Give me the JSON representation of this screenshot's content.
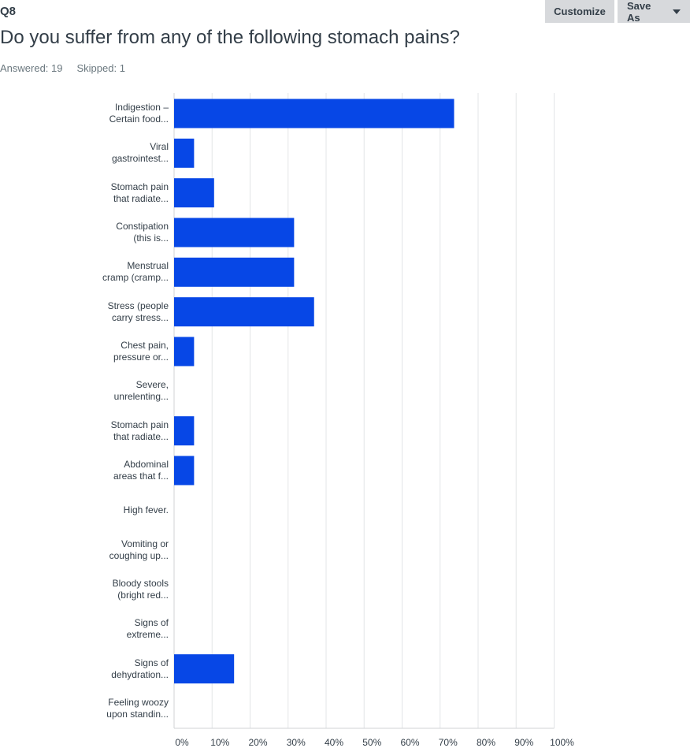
{
  "question": {
    "number": "Q8",
    "title": "Do you suffer from any of the following stomach pains?",
    "answered": "Answered: 19",
    "skipped": "Skipped: 1"
  },
  "toolbar": {
    "customize_label": "Customize",
    "save_as_label": "Save As",
    "save_as_icon": "caret-down-icon"
  },
  "colors": {
    "bar": "#0747e6",
    "grid": "#e3e5e7",
    "axis": "#d0d3d6"
  },
  "chart_data": {
    "type": "bar",
    "orientation": "horizontal",
    "categories": [
      [
        "Indigestion –",
        "Certain food..."
      ],
      [
        "Viral",
        "gastrointest..."
      ],
      [
        "Stomach pain",
        "that radiate..."
      ],
      [
        "Constipation",
        "(this is..."
      ],
      [
        "Menstrual",
        "cramp (cramp..."
      ],
      [
        "Stress (people",
        "carry stress..."
      ],
      [
        "Chest pain,",
        "pressure or..."
      ],
      [
        "Severe,",
        "unrelenting..."
      ],
      [
        "Stomach pain",
        "that radiate..."
      ],
      [
        "Abdominal",
        "areas that f..."
      ],
      [
        "High fever."
      ],
      [
        "Vomiting or",
        "coughing up..."
      ],
      [
        "Bloody stools",
        "(bright red..."
      ],
      [
        "Signs of",
        "extreme..."
      ],
      [
        "Signs of",
        "dehydration..."
      ],
      [
        "Feeling woozy",
        "upon standin..."
      ]
    ],
    "values": [
      73.68,
      5.26,
      10.53,
      31.58,
      31.58,
      36.84,
      5.26,
      0,
      5.26,
      5.26,
      0,
      0,
      0,
      0,
      15.79,
      0
    ],
    "xlim": [
      0,
      100
    ],
    "xticks": [
      "0%",
      "10%",
      "20%",
      "30%",
      "40%",
      "50%",
      "60%",
      "70%",
      "80%",
      "90%",
      "100%"
    ],
    "grid": true,
    "title": "",
    "xlabel": "",
    "ylabel": ""
  }
}
